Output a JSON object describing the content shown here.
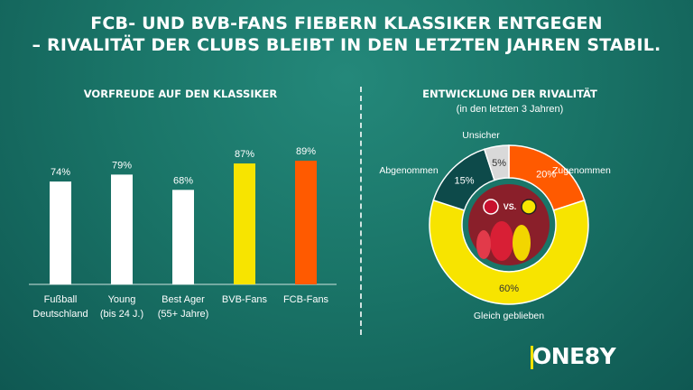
{
  "title": {
    "line1": "FCB- UND BVB-FANS FIEBERN KLASSIKER ENTGEGEN",
    "line2": "– RIVALITÄT DER CLUBS BLEIBT IN DEN LETZTEN JAHREN STABIL."
  },
  "logo": "ONE8Y",
  "chart_data": [
    {
      "type": "bar",
      "title": "VORFREUDE AUF DEN KLASSIKER",
      "categories": [
        [
          "Fußball",
          "Deutschland"
        ],
        [
          "Young",
          "(bis 24 J.)"
        ],
        [
          "Best Ager",
          "(55+ Jahre)"
        ],
        [
          "BVB-Fans"
        ],
        [
          "FCB-Fans"
        ]
      ],
      "values": [
        74,
        79,
        68,
        87,
        89
      ],
      "data_labels": [
        "74%",
        "79%",
        "68%",
        "87%",
        "89%"
      ],
      "colors": [
        "#ffffff",
        "#ffffff",
        "#ffffff",
        "#f7e400",
        "#ff5a00"
      ],
      "ylim": [
        0,
        100
      ]
    },
    {
      "type": "pie",
      "title": "ENTWICKLUNG DER RIVALITÄT",
      "subtitle": "(in den letzten 3 Jahren)",
      "slices": [
        {
          "label": "Zugenommen",
          "value": 20,
          "data_label": "20%",
          "color": "#ff5a00"
        },
        {
          "label": "Gleich geblieben",
          "value": 60,
          "data_label": "60%",
          "color": "#f7e400"
        },
        {
          "label": "Abgenommen",
          "value": 15,
          "data_label": "15%",
          "color": "#0d4a4a"
        },
        {
          "label": "Unsicher",
          "value": 5,
          "data_label": "5%",
          "color": "#d9d9d9"
        }
      ],
      "center_image_text": "VS."
    }
  ]
}
